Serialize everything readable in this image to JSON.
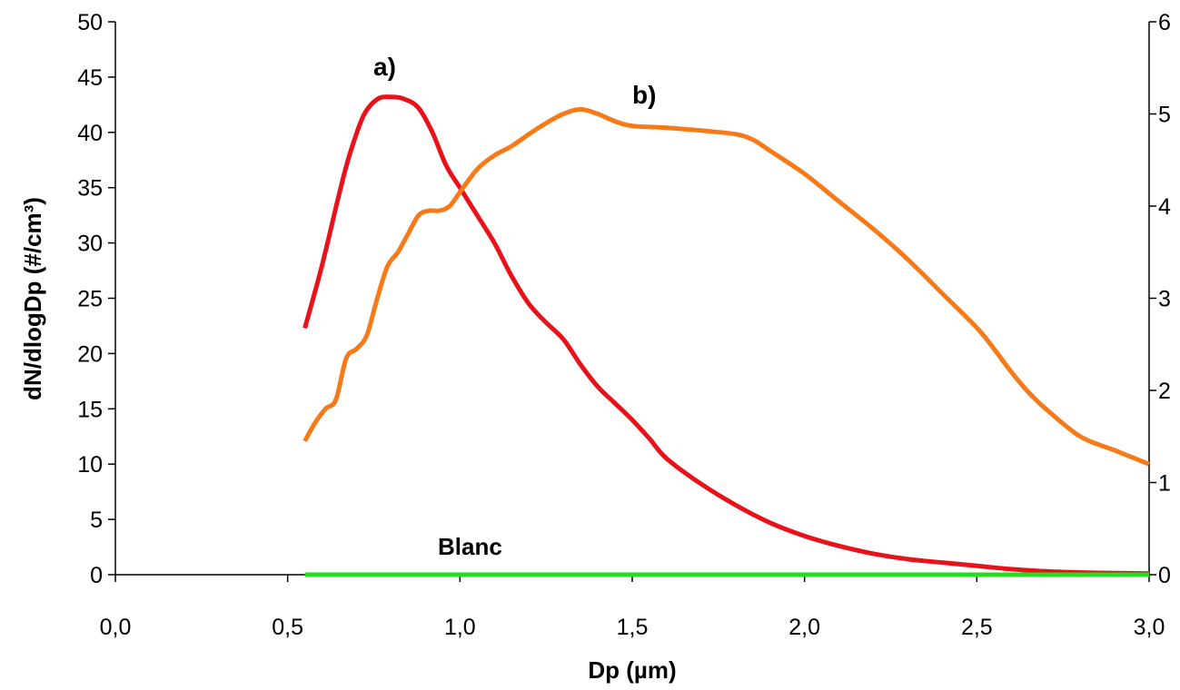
{
  "chart_data": {
    "type": "line",
    "title": "",
    "xlabel": "Dp (µm)",
    "ylabel": "dN/dlogDp (#/cm³)",
    "xlim": [
      0.0,
      3.0
    ],
    "ylim": [
      0,
      50
    ],
    "y2lim": [
      0,
      6
    ],
    "grid": false,
    "x_ticks": [
      "0,0",
      "0,5",
      "1,0",
      "1,5",
      "2,0",
      "2,5",
      "3,0"
    ],
    "y_ticks": [
      "0",
      "5",
      "10",
      "15",
      "20",
      "25",
      "30",
      "35",
      "40",
      "45",
      "50"
    ],
    "y2_ticks": [
      "0",
      "1",
      "2",
      "3",
      "4",
      "5",
      "6"
    ],
    "colors": {
      "a": "#e8121b",
      "b": "#f77a18",
      "blanc": "#22dd22"
    },
    "series": [
      {
        "label": "a)",
        "axis": "left",
        "x": [
          0.55,
          0.6,
          0.65,
          0.68,
          0.72,
          0.76,
          0.8,
          0.84,
          0.88,
          0.92,
          0.96,
          1.0,
          1.05,
          1.1,
          1.15,
          1.2,
          1.25,
          1.3,
          1.35,
          1.4,
          1.45,
          1.5,
          1.55,
          1.6,
          1.7,
          1.8,
          1.9,
          2.0,
          2.1,
          2.2,
          2.3,
          2.4,
          2.5,
          2.6,
          2.7,
          2.8,
          2.9,
          3.0
        ],
        "y": [
          22.3,
          28.0,
          34.5,
          38.0,
          41.5,
          43.0,
          43.2,
          43.0,
          42.2,
          40.0,
          37.0,
          35.0,
          32.5,
          30.0,
          27.0,
          24.5,
          22.8,
          21.3,
          19.0,
          17.0,
          15.5,
          14.0,
          12.3,
          10.5,
          8.2,
          6.3,
          4.7,
          3.5,
          2.6,
          1.9,
          1.4,
          1.1,
          0.8,
          0.5,
          0.3,
          0.2,
          0.15,
          0.1
        ]
      },
      {
        "label": "b)",
        "axis": "right",
        "x": [
          0.55,
          0.58,
          0.61,
          0.64,
          0.67,
          0.7,
          0.73,
          0.76,
          0.79,
          0.82,
          0.85,
          0.88,
          0.91,
          0.94,
          0.97,
          1.0,
          1.05,
          1.1,
          1.15,
          1.2,
          1.25,
          1.3,
          1.35,
          1.4,
          1.45,
          1.5,
          1.6,
          1.7,
          1.8,
          1.85,
          1.9,
          2.0,
          2.1,
          2.2,
          2.3,
          2.4,
          2.5,
          2.55,
          2.6,
          2.65,
          2.7,
          2.8,
          2.9,
          3.0
        ],
        "y": [
          1.45,
          1.65,
          1.8,
          1.9,
          2.35,
          2.45,
          2.6,
          3.0,
          3.35,
          3.5,
          3.7,
          3.9,
          3.95,
          3.95,
          4.0,
          4.15,
          4.4,
          4.55,
          4.65,
          4.78,
          4.9,
          5.0,
          5.05,
          5.0,
          4.92,
          4.87,
          4.85,
          4.82,
          4.78,
          4.72,
          4.6,
          4.35,
          4.05,
          3.75,
          3.42,
          3.05,
          2.68,
          2.45,
          2.2,
          1.98,
          1.8,
          1.5,
          1.35,
          1.2
        ]
      },
      {
        "label": "Blanc",
        "axis": "left",
        "x": [
          0.55,
          3.0
        ],
        "y": [
          0,
          0
        ]
      }
    ],
    "annotations": [
      {
        "text": "a)",
        "series": 0
      },
      {
        "text": "b)",
        "series": 1
      },
      {
        "text": "Blanc",
        "series": 2
      }
    ]
  }
}
